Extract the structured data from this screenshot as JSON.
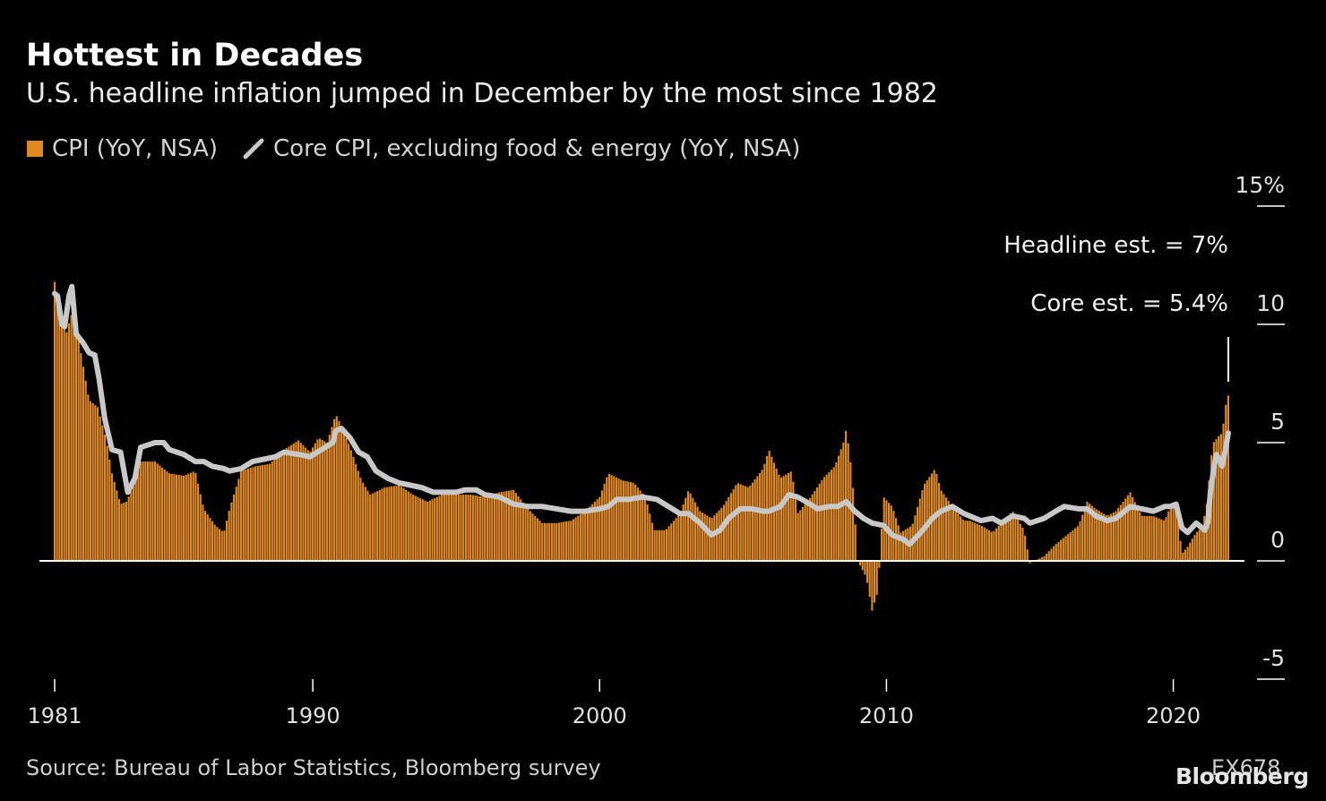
{
  "title": "Hottest in Decades",
  "subtitle": "U.S. headline inflation jumped in December by the most since 1982",
  "legend": {
    "cpi": "CPI (YoY, NSA)",
    "core": "Core CPI, excluding food & energy (YoY, NSA)"
  },
  "annotations": {
    "headline": "Headline est. = 7%",
    "core": "Core est. = 5.4%"
  },
  "footer": {
    "source": "Source: Bureau of Labor Statistics, Bloomberg survey",
    "code": "EX678",
    "logo": "Bloomberg"
  },
  "colors": {
    "background": "#000000",
    "cpi_bars": "#e08a1e",
    "core_line": "#c8c8c8",
    "text": "#ffffff"
  },
  "chart_data": {
    "type": "bar",
    "x_unit": "year",
    "ylim": [
      -5,
      15
    ],
    "y_ticks": [
      15,
      10,
      5,
      0,
      -5
    ],
    "y_tick_labels": [
      "15%",
      "10",
      "5",
      "0",
      "-5"
    ],
    "x_ticks": [
      1981,
      1990,
      2000,
      2010,
      2020
    ],
    "x_tick_labels": [
      "1981",
      "1990",
      "2000",
      "2010",
      "2020"
    ],
    "x_range": [
      1981.0,
      2021.92
    ],
    "grid": false,
    "series": [
      {
        "name": "CPI (YoY, NSA)",
        "type": "bar",
        "points": [
          [
            1981.0,
            11.8
          ],
          [
            1981.4,
            9.6
          ],
          [
            1981.7,
            10.9
          ],
          [
            1981.9,
            8.9
          ],
          [
            1982.2,
            6.8
          ],
          [
            1982.5,
            6.5
          ],
          [
            1982.8,
            5.1
          ],
          [
            1983.0,
            3.7
          ],
          [
            1983.3,
            2.4
          ],
          [
            1983.5,
            2.5
          ],
          [
            1983.8,
            3.3
          ],
          [
            1984.0,
            4.2
          ],
          [
            1984.5,
            4.2
          ],
          [
            1985.0,
            3.7
          ],
          [
            1985.5,
            3.6
          ],
          [
            1985.9,
            3.8
          ],
          [
            1986.2,
            2.2
          ],
          [
            1986.6,
            1.5
          ],
          [
            1986.9,
            1.2
          ],
          [
            1987.1,
            2.2
          ],
          [
            1987.5,
            3.8
          ],
          [
            1988.0,
            4.0
          ],
          [
            1988.5,
            4.1
          ],
          [
            1989.0,
            4.7
          ],
          [
            1989.5,
            5.1
          ],
          [
            1989.9,
            4.6
          ],
          [
            1990.2,
            5.2
          ],
          [
            1990.5,
            5.0
          ],
          [
            1990.8,
            6.2
          ],
          [
            1991.0,
            5.7
          ],
          [
            1991.3,
            4.8
          ],
          [
            1991.7,
            3.4
          ],
          [
            1992.0,
            2.8
          ],
          [
            1992.5,
            3.1
          ],
          [
            1993.0,
            3.2
          ],
          [
            1993.5,
            2.8
          ],
          [
            1994.0,
            2.5
          ],
          [
            1994.5,
            2.8
          ],
          [
            1995.0,
            2.8
          ],
          [
            1995.5,
            2.8
          ],
          [
            1996.0,
            2.7
          ],
          [
            1996.5,
            2.9
          ],
          [
            1997.0,
            3.0
          ],
          [
            1997.5,
            2.2
          ],
          [
            1998.0,
            1.6
          ],
          [
            1998.5,
            1.6
          ],
          [
            1999.0,
            1.7
          ],
          [
            1999.5,
            2.1
          ],
          [
            2000.0,
            2.7
          ],
          [
            2000.3,
            3.7
          ],
          [
            2000.8,
            3.4
          ],
          [
            2001.2,
            3.3
          ],
          [
            2001.6,
            2.7
          ],
          [
            2001.9,
            1.3
          ],
          [
            2002.3,
            1.3
          ],
          [
            2002.8,
            2.0
          ],
          [
            2003.1,
            3.0
          ],
          [
            2003.5,
            2.1
          ],
          [
            2003.9,
            1.8
          ],
          [
            2004.3,
            2.3
          ],
          [
            2004.8,
            3.3
          ],
          [
            2005.2,
            3.1
          ],
          [
            2005.7,
            3.9
          ],
          [
            2005.9,
            4.7
          ],
          [
            2006.3,
            3.5
          ],
          [
            2006.7,
            3.8
          ],
          [
            2006.9,
            2.0
          ],
          [
            2007.3,
            2.6
          ],
          [
            2007.8,
            3.5
          ],
          [
            2008.2,
            4.0
          ],
          [
            2008.5,
            5.0
          ],
          [
            2008.6,
            5.6
          ],
          [
            2008.8,
            3.7
          ],
          [
            2009.0,
            0.0
          ],
          [
            2009.3,
            -0.7
          ],
          [
            2009.5,
            -2.1
          ],
          [
            2009.7,
            -1.3
          ],
          [
            2009.9,
            2.7
          ],
          [
            2010.2,
            2.3
          ],
          [
            2010.5,
            1.2
          ],
          [
            2010.9,
            1.5
          ],
          [
            2011.3,
            3.2
          ],
          [
            2011.7,
            3.9
          ],
          [
            2011.9,
            3.0
          ],
          [
            2012.3,
            2.3
          ],
          [
            2012.7,
            1.7
          ],
          [
            2012.9,
            1.7
          ],
          [
            2013.3,
            1.5
          ],
          [
            2013.7,
            1.2
          ],
          [
            2014.0,
            1.6
          ],
          [
            2014.4,
            2.1
          ],
          [
            2014.8,
            1.3
          ],
          [
            2015.0,
            -0.1
          ],
          [
            2015.5,
            0.2
          ],
          [
            2015.9,
            0.7
          ],
          [
            2016.2,
            1.0
          ],
          [
            2016.7,
            1.5
          ],
          [
            2017.0,
            2.5
          ],
          [
            2017.3,
            2.2
          ],
          [
            2017.7,
            1.9
          ],
          [
            2018.0,
            2.1
          ],
          [
            2018.5,
            2.9
          ],
          [
            2018.9,
            1.9
          ],
          [
            2019.3,
            1.9
          ],
          [
            2019.7,
            1.7
          ],
          [
            2019.9,
            2.3
          ],
          [
            2020.1,
            2.5
          ],
          [
            2020.3,
            0.3
          ],
          [
            2020.5,
            0.6
          ],
          [
            2020.8,
            1.2
          ],
          [
            2021.0,
            1.4
          ],
          [
            2021.2,
            2.6
          ],
          [
            2021.3,
            4.2
          ],
          [
            2021.4,
            5.0
          ],
          [
            2021.6,
            5.3
          ],
          [
            2021.7,
            5.4
          ],
          [
            2021.8,
            6.2
          ],
          [
            2021.85,
            6.8
          ],
          [
            2021.92,
            7.0
          ]
        ]
      },
      {
        "name": "Core CPI, excluding food & energy (YoY, NSA)",
        "type": "line",
        "points": [
          [
            1981.0,
            11.3
          ],
          [
            1981.1,
            11.2
          ],
          [
            1981.25,
            10.0
          ],
          [
            1981.35,
            9.9
          ],
          [
            1981.5,
            11.2
          ],
          [
            1981.6,
            11.6
          ],
          [
            1981.75,
            9.6
          ],
          [
            1982.0,
            9.2
          ],
          [
            1982.2,
            8.8
          ],
          [
            1982.4,
            8.7
          ],
          [
            1982.55,
            7.7
          ],
          [
            1982.75,
            6.0
          ],
          [
            1983.0,
            4.7
          ],
          [
            1983.3,
            4.6
          ],
          [
            1983.55,
            2.9
          ],
          [
            1983.8,
            3.5
          ],
          [
            1984.0,
            4.8
          ],
          [
            1984.5,
            5.0
          ],
          [
            1984.8,
            5.0
          ],
          [
            1985.0,
            4.7
          ],
          [
            1985.5,
            4.5
          ],
          [
            1985.9,
            4.2
          ],
          [
            1986.2,
            4.2
          ],
          [
            1986.5,
            4.0
          ],
          [
            1986.9,
            3.9
          ],
          [
            1987.1,
            3.8
          ],
          [
            1987.5,
            3.9
          ],
          [
            1987.9,
            4.2
          ],
          [
            1988.3,
            4.3
          ],
          [
            1988.7,
            4.4
          ],
          [
            1989.0,
            4.6
          ],
          [
            1989.5,
            4.5
          ],
          [
            1989.9,
            4.4
          ],
          [
            1990.3,
            4.7
          ],
          [
            1990.7,
            5.0
          ],
          [
            1990.8,
            5.5
          ],
          [
            1991.0,
            5.6
          ],
          [
            1991.3,
            5.2
          ],
          [
            1991.6,
            4.6
          ],
          [
            1991.9,
            4.4
          ],
          [
            1992.2,
            3.8
          ],
          [
            1992.6,
            3.5
          ],
          [
            1993.0,
            3.3
          ],
          [
            1993.4,
            3.2
          ],
          [
            1993.8,
            3.1
          ],
          [
            1994.2,
            2.9
          ],
          [
            1994.6,
            2.9
          ],
          [
            1995.0,
            2.9
          ],
          [
            1995.3,
            3.0
          ],
          [
            1995.7,
            3.0
          ],
          [
            1996.0,
            2.8
          ],
          [
            1996.5,
            2.7
          ],
          [
            1997.0,
            2.4
          ],
          [
            1997.5,
            2.3
          ],
          [
            1998.0,
            2.3
          ],
          [
            1998.5,
            2.2
          ],
          [
            1999.0,
            2.1
          ],
          [
            1999.5,
            2.1
          ],
          [
            2000.0,
            2.2
          ],
          [
            2000.3,
            2.3
          ],
          [
            2000.6,
            2.6
          ],
          [
            2001.0,
            2.6
          ],
          [
            2001.5,
            2.7
          ],
          [
            2002.0,
            2.6
          ],
          [
            2002.4,
            2.3
          ],
          [
            2002.8,
            2.0
          ],
          [
            2003.1,
            2.0
          ],
          [
            2003.5,
            1.6
          ],
          [
            2003.9,
            1.1
          ],
          [
            2004.2,
            1.3
          ],
          [
            2004.5,
            1.8
          ],
          [
            2004.9,
            2.2
          ],
          [
            2005.3,
            2.2
          ],
          [
            2005.7,
            2.1
          ],
          [
            2005.9,
            2.1
          ],
          [
            2006.3,
            2.3
          ],
          [
            2006.6,
            2.8
          ],
          [
            2006.9,
            2.7
          ],
          [
            2007.2,
            2.5
          ],
          [
            2007.6,
            2.2
          ],
          [
            2008.0,
            2.3
          ],
          [
            2008.3,
            2.3
          ],
          [
            2008.6,
            2.5
          ],
          [
            2008.9,
            2.1
          ],
          [
            2009.2,
            1.8
          ],
          [
            2009.5,
            1.6
          ],
          [
            2009.9,
            1.5
          ],
          [
            2010.2,
            1.1
          ],
          [
            2010.6,
            0.9
          ],
          [
            2010.8,
            0.7
          ],
          [
            2011.2,
            1.2
          ],
          [
            2011.6,
            1.8
          ],
          [
            2011.9,
            2.1
          ],
          [
            2012.3,
            2.3
          ],
          [
            2012.7,
            2.0
          ],
          [
            2012.9,
            1.9
          ],
          [
            2013.3,
            1.7
          ],
          [
            2013.7,
            1.8
          ],
          [
            2014.0,
            1.6
          ],
          [
            2014.4,
            1.9
          ],
          [
            2014.8,
            1.8
          ],
          [
            2015.0,
            1.6
          ],
          [
            2015.5,
            1.8
          ],
          [
            2015.9,
            2.1
          ],
          [
            2016.2,
            2.3
          ],
          [
            2016.7,
            2.2
          ],
          [
            2017.0,
            2.2
          ],
          [
            2017.3,
            1.9
          ],
          [
            2017.7,
            1.7
          ],
          [
            2018.0,
            1.8
          ],
          [
            2018.5,
            2.3
          ],
          [
            2018.9,
            2.2
          ],
          [
            2019.3,
            2.1
          ],
          [
            2019.7,
            2.3
          ],
          [
            2019.9,
            2.3
          ],
          [
            2020.1,
            2.4
          ],
          [
            2020.3,
            1.4
          ],
          [
            2020.5,
            1.2
          ],
          [
            2020.8,
            1.6
          ],
          [
            2021.0,
            1.4
          ],
          [
            2021.1,
            1.3
          ],
          [
            2021.2,
            1.6
          ],
          [
            2021.3,
            3.0
          ],
          [
            2021.4,
            3.8
          ],
          [
            2021.5,
            4.5
          ],
          [
            2021.6,
            4.3
          ],
          [
            2021.7,
            4.0
          ],
          [
            2021.8,
            4.6
          ],
          [
            2021.85,
            4.9
          ],
          [
            2021.92,
            5.4
          ]
        ]
      }
    ]
  }
}
